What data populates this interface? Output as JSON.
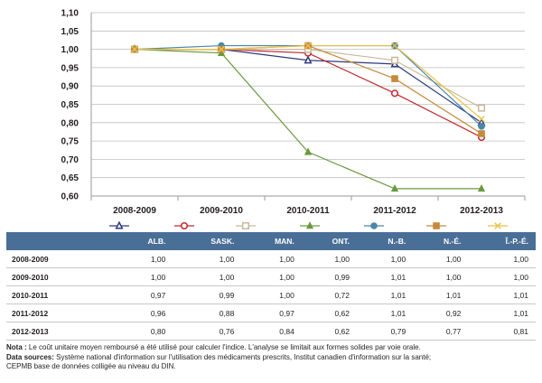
{
  "chart_data": {
    "type": "line",
    "categories": [
      "2008-2009",
      "2009-2010",
      "2010-2011",
      "2011-2012",
      "2012-2013"
    ],
    "ylim": [
      0.6,
      1.1
    ],
    "yticks": [
      "0,60",
      "0,65",
      "0,70",
      "0,75",
      "0,80",
      "0,85",
      "0,90",
      "0,95",
      "1,00",
      "1,05",
      "1,10"
    ],
    "series": [
      {
        "name": "ALB.",
        "color": "#2e3a7d",
        "marker": "triangle-open",
        "values": [
          1.0,
          1.0,
          0.97,
          0.96,
          0.8
        ]
      },
      {
        "name": "SASK.",
        "color": "#c1272d",
        "marker": "circle-open",
        "values": [
          1.0,
          1.0,
          0.99,
          0.88,
          0.76
        ]
      },
      {
        "name": "MAN.",
        "color": "#c9b89a",
        "marker": "square-open",
        "values": [
          1.0,
          1.0,
          1.0,
          0.97,
          0.84
        ]
      },
      {
        "name": "ONT.",
        "color": "#6a9a3e",
        "marker": "triangle-filled",
        "values": [
          1.0,
          0.99,
          0.72,
          0.62,
          0.62
        ]
      },
      {
        "name": "N.-B.",
        "color": "#4a86a8",
        "marker": "circle-filled",
        "values": [
          1.0,
          1.01,
          1.01,
          1.01,
          0.79
        ]
      },
      {
        "name": "N.-É.",
        "color": "#c58a3a",
        "marker": "square-filled",
        "values": [
          1.0,
          1.0,
          1.01,
          0.92,
          0.77
        ]
      },
      {
        "name": "Î.-P.-É.",
        "color": "#e8c24a",
        "marker": "x",
        "values": [
          1.0,
          1.0,
          1.01,
          1.01,
          0.81
        ]
      }
    ]
  },
  "table": {
    "headers": [
      "",
      "ALB.",
      "SASK.",
      "MAN.",
      "ONT.",
      "N.-B.",
      "N.-É.",
      "Î.-P.-É."
    ],
    "rows": [
      {
        "year": "2008-2009",
        "cells": [
          "1,00",
          "1,00",
          "1,00",
          "1,00",
          "1,00",
          "1,00",
          "1,00"
        ]
      },
      {
        "year": "2009-2010",
        "cells": [
          "1,00",
          "1,00",
          "1,00",
          "0,99",
          "1,01",
          "1,00",
          "1,00"
        ]
      },
      {
        "year": "2010-2011",
        "cells": [
          "0,97",
          "0,99",
          "1,00",
          "0,72",
          "1,01",
          "1,01",
          "1,01"
        ]
      },
      {
        "year": "2011-2012",
        "cells": [
          "0,96",
          "0,88",
          "0,97",
          "0,62",
          "1,01",
          "0,92",
          "1,01"
        ]
      },
      {
        "year": "2012-2013",
        "cells": [
          "0,80",
          "0,76",
          "0,84",
          "0,62",
          "0,79",
          "0,77",
          "0,81"
        ]
      }
    ]
  },
  "notes": {
    "nota_label": "Nota :",
    "nota_text": " Le coût unitaire moyen remboursé a été utilisé pour calculer l'indice. L'analyse se limitait aux formes solides par voie orale.",
    "sources_label": "Data sources:",
    "sources_text": " Système national d'information sur l'utilisation des médicaments prescrits, Institut canadien d'information sur la santé;",
    "sources_text2": "CEPMB base de données colligée au niveau du DIN."
  }
}
